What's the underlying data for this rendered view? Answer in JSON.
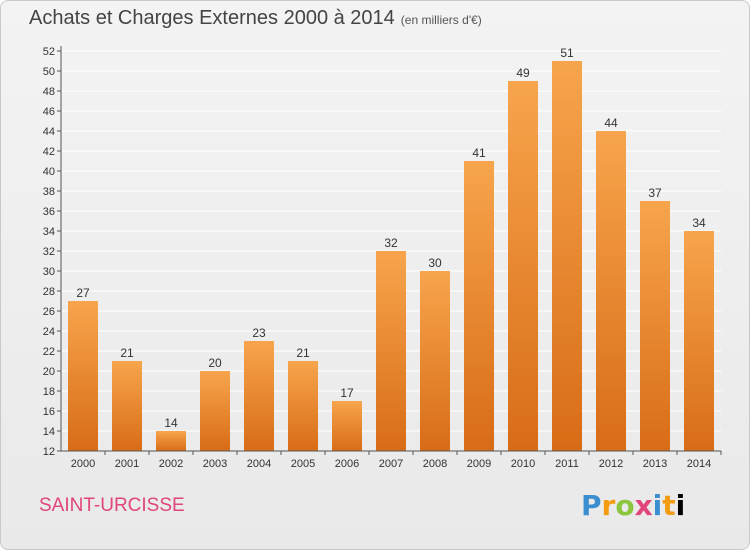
{
  "header": {
    "title": "Achats et Charges Externes 2000 à 2014",
    "subtitle": "(en milliers d'€)"
  },
  "footer": {
    "commune": "SAINT-URCISSE",
    "logo": "Proxiti"
  },
  "colors": {
    "bar_light": "#f7a54d",
    "bar_dark": "#d86c16",
    "axis": "#555555",
    "grid": "#ffffff"
  },
  "chart_data": {
    "type": "bar",
    "title": "Achats et Charges Externes 2000 à 2014",
    "subtitle": "(en milliers d'€)",
    "categories": [
      "2000",
      "2001",
      "2002",
      "2003",
      "2004",
      "2005",
      "2006",
      "2007",
      "2008",
      "2009",
      "2010",
      "2011",
      "2012",
      "2013",
      "2014"
    ],
    "values": [
      27,
      21,
      14,
      20,
      23,
      21,
      17,
      32,
      30,
      41,
      49,
      51,
      44,
      37,
      34
    ],
    "ylim": [
      12,
      52
    ],
    "ytick_step": 2,
    "grid": true,
    "xlabel": "",
    "ylabel": ""
  }
}
